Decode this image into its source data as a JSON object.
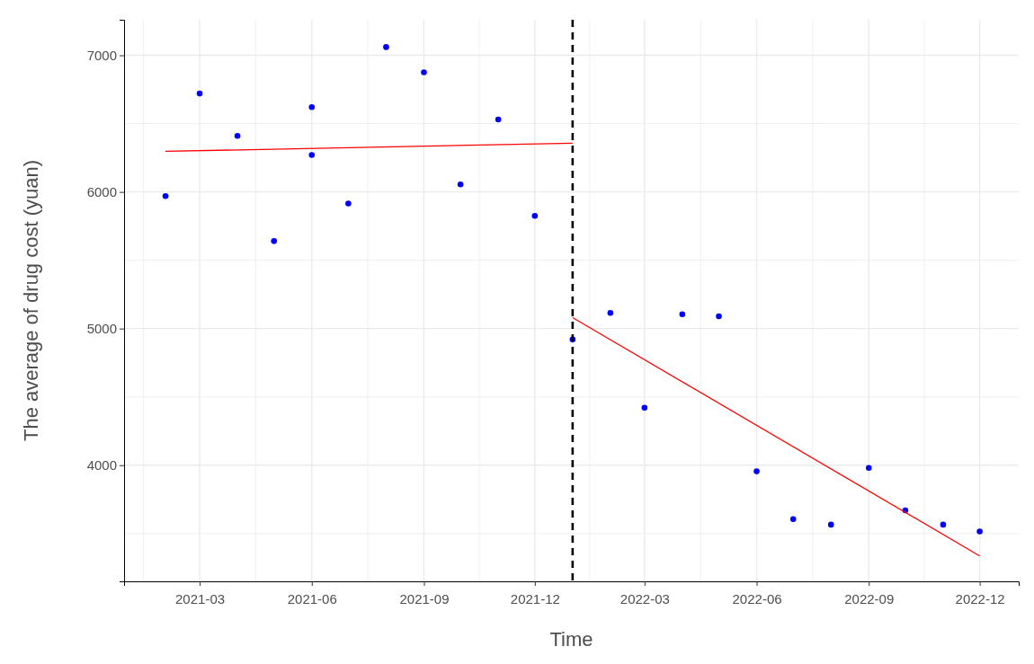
{
  "chart_data": {
    "type": "scatter",
    "xlabel": "Time",
    "ylabel": "The average of drug cost (yuan)",
    "xlim": [
      "2020-12-29",
      "2023-01-02"
    ],
    "ylim": [
      3150,
      7260
    ],
    "xticks": [
      {
        "value": "2021-03",
        "label": "2021-03"
      },
      {
        "value": "2021-06",
        "label": "2021-06"
      },
      {
        "value": "2021-09",
        "label": "2021-09"
      },
      {
        "value": "2021-12",
        "label": "2021-12"
      },
      {
        "value": "2022-03",
        "label": "2022-03"
      },
      {
        "value": "2022-06",
        "label": "2022-06"
      },
      {
        "value": "2022-09",
        "label": "2022-09"
      },
      {
        "value": "2022-12",
        "label": "2022-12"
      }
    ],
    "yticks": [
      4000,
      5000,
      6000,
      7000
    ],
    "grid": true,
    "series": [
      {
        "color": "#0000ff",
        "marker": "circle",
        "x": [
          "2021-02",
          "2021-03",
          "2021-04",
          "2021-05",
          "2021-06",
          "2021-06",
          "2021-07",
          "2021-08",
          "2021-09",
          "2021-10",
          "2021-11",
          "2021-12",
          "2022-01",
          "2022-02",
          "2022-03",
          "2022-04",
          "2022-05",
          "2022-06",
          "2022-07",
          "2022-08",
          "2022-09",
          "2022-10",
          "2022-11",
          "2022-12"
        ],
        "values": [
          5970,
          6720,
          6410,
          5640,
          6620,
          6270,
          5915,
          7060,
          6875,
          6055,
          6530,
          5825,
          4920,
          5115,
          4420,
          5105,
          5090,
          3955,
          3605,
          3565,
          3980,
          3670,
          3565,
          3515
        ]
      },
      {
        "type": "line",
        "color": "#ff0000",
        "x": [
          "2021-02",
          "2022-01"
        ],
        "values": [
          6297,
          6357
        ]
      },
      {
        "type": "line",
        "color": "#ff0000",
        "x": [
          "2022-01",
          "2022-12"
        ],
        "values": [
          5080,
          3336
        ]
      }
    ],
    "ref_lines": [
      {
        "axis": "x",
        "value": "2022-01",
        "line_style": "dashed",
        "color": "#000000"
      }
    ]
  }
}
